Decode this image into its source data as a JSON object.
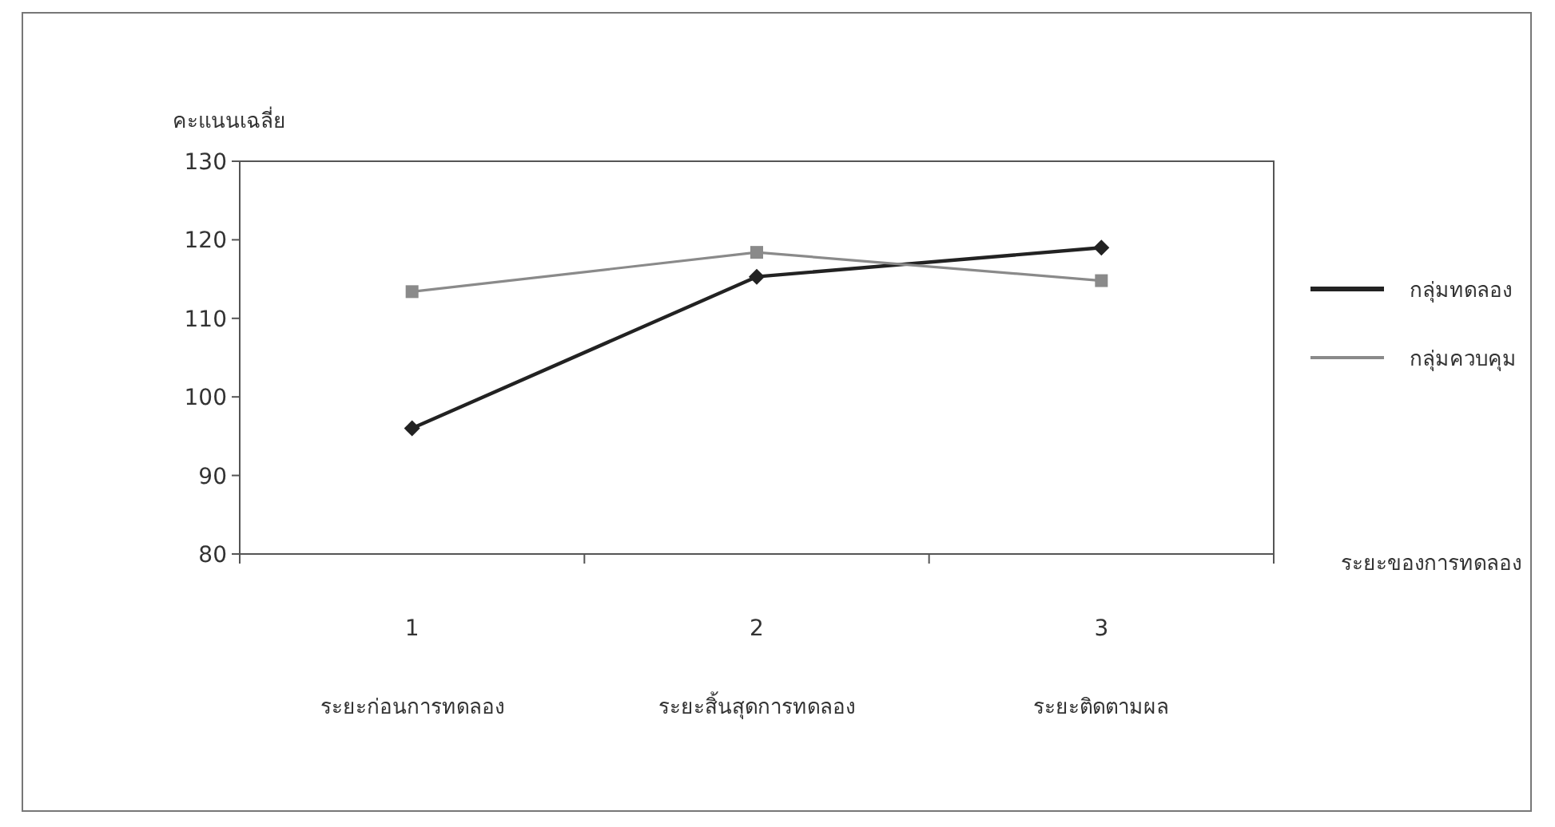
{
  "chart_data": {
    "type": "line",
    "ylabel": "คะแนนเฉลี่ย",
    "xlabel": "ระยะของการทดลอง",
    "categories": [
      "1",
      "2",
      "3"
    ],
    "series": [
      {
        "name": "กลุ่มทดลอง",
        "color": "#222222",
        "marker": "diamond",
        "values": [
          96,
          115.3,
          119
        ]
      },
      {
        "name": "กลุ่มควบคุม",
        "color": "#8a8a8a",
        "marker": "square",
        "values": [
          113.4,
          118.4,
          114.8
        ]
      }
    ],
    "annotations": [
      "ระยะก่อนการทดลอง",
      "ระยะสิ้นสุดการทดลอง",
      "ระยะติดตามผล"
    ],
    "ylim": [
      80,
      130
    ],
    "yticks": [
      80,
      90,
      100,
      110,
      120,
      130
    ],
    "grid": false,
    "legend": "right",
    "line_style": "solid"
  }
}
